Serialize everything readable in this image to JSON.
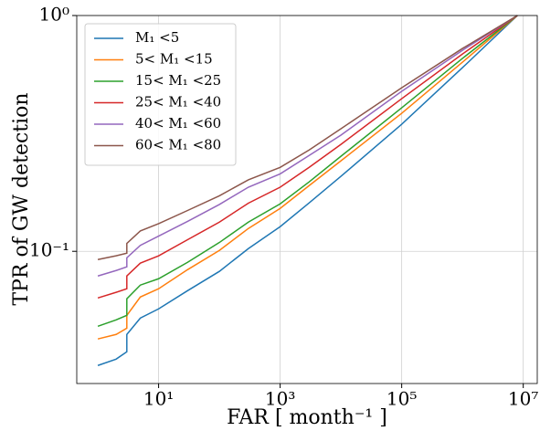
{
  "chart_data": {
    "type": "line",
    "xlabel": "FAR [ month⁻¹ ]",
    "ylabel": "TPR of GW detection",
    "x": [
      1,
      2,
      3,
      3,
      5,
      10,
      30,
      100,
      300,
      1000,
      3000,
      10000,
      100000,
      1000000,
      8000000
    ],
    "series": [
      {
        "name": "M₁ <5",
        "color": "#1f77b4",
        "values": [
          0.0328,
          0.0349,
          0.0375,
          0.0444,
          0.0521,
          0.057,
          0.0681,
          0.0822,
          0.1027,
          0.1272,
          0.1605,
          0.208,
          0.346,
          0.601,
          1.0
        ]
      },
      {
        "name": "5< M₁ <15",
        "color": "#ff7f0e",
        "values": [
          0.0425,
          0.0444,
          0.0472,
          0.0535,
          0.064,
          0.0694,
          0.0836,
          0.1009,
          0.125,
          0.152,
          0.19,
          0.242,
          0.385,
          0.634,
          1.0
        ]
      },
      {
        "name": "15< M₁ <25",
        "color": "#2ca02c",
        "values": [
          0.0481,
          0.0512,
          0.0535,
          0.0629,
          0.0719,
          0.0765,
          0.0898,
          0.109,
          0.133,
          0.159,
          0.197,
          0.253,
          0.406,
          0.658,
          1.0
        ]
      },
      {
        "name": "25< M₁ <40",
        "color": "#d62728",
        "values": [
          0.0634,
          0.067,
          0.0694,
          0.0786,
          0.0891,
          0.0957,
          0.112,
          0.133,
          0.16,
          0.187,
          0.227,
          0.284,
          0.444,
          0.687,
          1.0
        ]
      },
      {
        "name": "40< M₁ <60",
        "color": "#9467bd",
        "values": [
          0.0786,
          0.0829,
          0.0859,
          0.0939,
          0.106,
          0.116,
          0.134,
          0.158,
          0.187,
          0.213,
          0.255,
          0.311,
          0.477,
          0.712,
          1.0
        ]
      },
      {
        "name": "60< M₁ <80",
        "color": "#8c564b",
        "values": [
          0.0923,
          0.0957,
          0.0982,
          0.108,
          0.122,
          0.131,
          0.149,
          0.172,
          0.201,
          0.227,
          0.269,
          0.331,
          0.494,
          0.725,
          1.0
        ]
      }
    ],
    "xscale": "log",
    "yscale": "log",
    "xlim": [
      0.45,
      17000000
    ],
    "ylim": [
      0.0275,
      1
    ],
    "xticks": [
      {
        "value": 10,
        "label": "10¹"
      },
      {
        "value": 1000,
        "label": "10³"
      },
      {
        "value": 100000,
        "label": "10⁵"
      },
      {
        "value": 10000000,
        "label": "10⁷"
      }
    ],
    "yticks": [
      {
        "value": 0.1,
        "label": "10⁻¹"
      },
      {
        "value": 1,
        "label": "10⁰"
      }
    ],
    "grid": true,
    "legend_loc": "upper left"
  }
}
